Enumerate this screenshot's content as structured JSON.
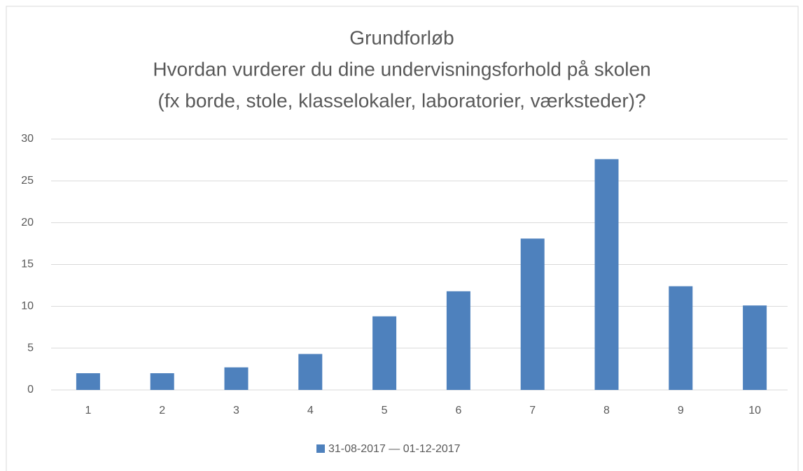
{
  "chart_data": {
    "type": "bar",
    "title": [
      "Grundforløb",
      "Hvordan vurderer du dine undervisningsforhold på skolen",
      "(fx borde, stole, klasselokaler, laboratorier, værksteder)?"
    ],
    "categories": [
      "1",
      "2",
      "3",
      "4",
      "5",
      "6",
      "7",
      "8",
      "9",
      "10"
    ],
    "series": [
      {
        "name": "31-08-2017 — 01-12-2017",
        "color": "#4e81bd",
        "values": [
          2.0,
          2.0,
          2.7,
          4.3,
          8.8,
          11.8,
          18.1,
          27.6,
          12.4,
          10.1
        ]
      }
    ],
    "ylim": [
      0,
      30
    ],
    "yticks": [
      0,
      5,
      10,
      15,
      20,
      25,
      30
    ],
    "grid": true,
    "legend": "bottom"
  }
}
